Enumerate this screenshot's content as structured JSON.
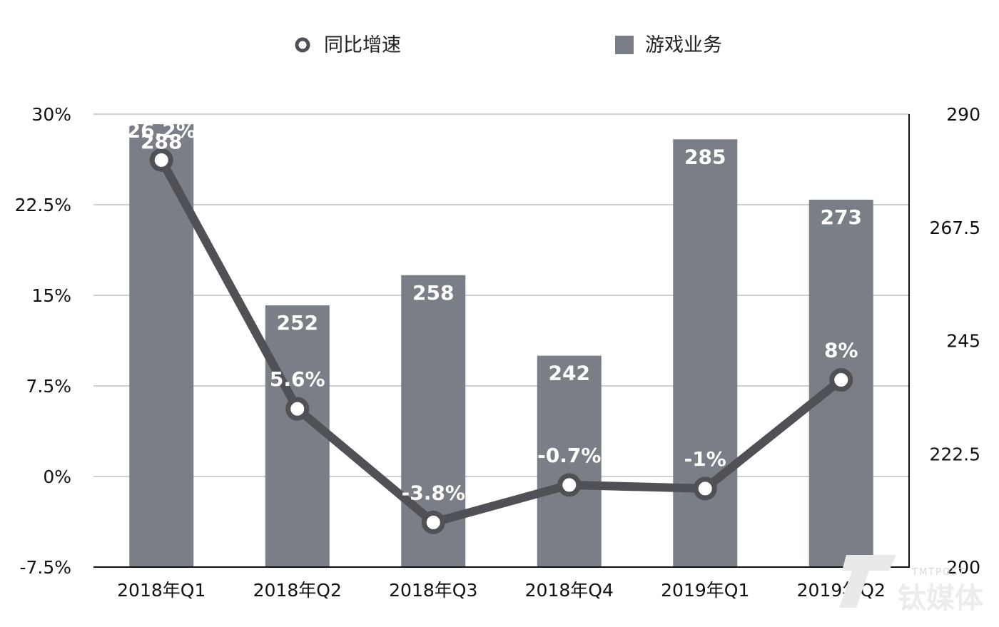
{
  "chart_data": {
    "type": "bar+line",
    "categories": [
      "2018年Q1",
      "2018年Q2",
      "2018年Q3",
      "2018年Q4",
      "2019年Q1",
      "2019年Q2"
    ],
    "series": [
      {
        "name": "游戏业务",
        "type": "bar",
        "axis": "right",
        "values": [
          288,
          252,
          258,
          242,
          285,
          273
        ],
        "labels": [
          "288",
          "252",
          "258",
          "242",
          "285",
          "273"
        ],
        "color": "#7a7e86"
      },
      {
        "name": "同比增速",
        "type": "line",
        "axis": "left",
        "values": [
          26.2,
          5.6,
          -3.8,
          -0.7,
          -1,
          8
        ],
        "labels": [
          "26.2%",
          "5.6%",
          "-3.8%",
          "-0.7%",
          "-1%",
          "8%"
        ],
        "color": "#4f5157"
      }
    ],
    "y_left": {
      "ticks": [
        "30%",
        "22.5%",
        "15%",
        "7.5%",
        "0%",
        "-7.5%"
      ],
      "ylim": [
        -7.5,
        30
      ]
    },
    "y_right": {
      "ticks": [
        "290",
        "267.5",
        "245",
        "222.5",
        "200"
      ],
      "ylim": [
        200,
        290
      ]
    },
    "grid": true,
    "legend": {
      "position": "top",
      "items": [
        "同比增速",
        "游戏业务"
      ]
    }
  },
  "watermark": {
    "text_en": "TMTPOST",
    "text_cn": "钛媒体"
  }
}
